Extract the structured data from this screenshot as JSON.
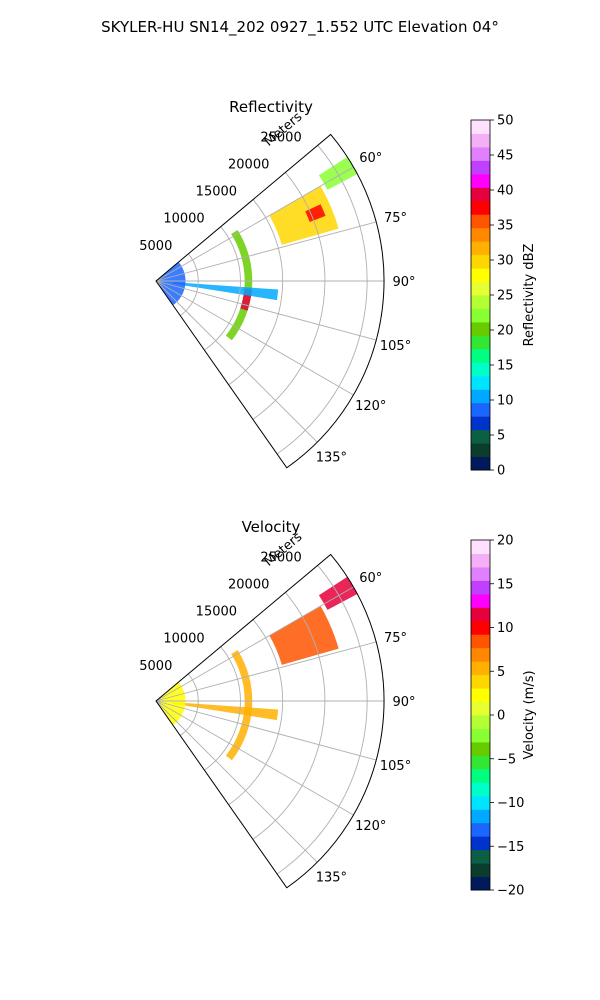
{
  "figure": {
    "suptitle": "SKYLER-HU  SN14_202  0927_1.552 UTC Elevation 04°"
  },
  "chart_data": [
    {
      "type": "heatmap",
      "subtype": "polar-sector radar PPI",
      "title": "Reflectivity",
      "range_label": "Meters",
      "range_ticks": [
        5000,
        10000,
        15000,
        20000,
        25000
      ],
      "range_max": 27000,
      "azimuth_range": [
        50,
        145
      ],
      "azimuth_ticks": [
        "60°",
        "75°",
        "90°",
        "105°",
        "120°",
        "135°"
      ],
      "grid": true,
      "colorbar": {
        "label": "Reflectivity dBZ",
        "min": 0,
        "max": 50,
        "ticks": [
          0,
          5,
          10,
          15,
          20,
          25,
          30,
          35,
          40,
          45,
          50
        ],
        "colors": [
          "#001a5c",
          "#0b3d2c",
          "#0c5f45",
          "#0033cc",
          "#1a66ff",
          "#00a8ff",
          "#00e5ff",
          "#00ffc8",
          "#00ff80",
          "#33e633",
          "#66cc00",
          "#88ff33",
          "#b3ff33",
          "#e6ff33",
          "#ffff00",
          "#ffd700",
          "#ffb000",
          "#ff8800",
          "#ff5500",
          "#ff0000",
          "#e6003c",
          "#ff00ff",
          "#c040ff",
          "#e080ff",
          "#f4b0f4",
          "#ffe0ff"
        ]
      },
      "echoes": [
        {
          "az_from": 60,
          "az_to": 74,
          "r_from": 15500,
          "r_to": 22500,
          "value": 30,
          "feature": "main storm band"
        },
        {
          "az_from": 65,
          "az_to": 69,
          "r_from": 19500,
          "r_to": 21500,
          "value": 38,
          "feature": "reflectivity core"
        },
        {
          "az_from": 57,
          "az_to": 62,
          "r_from": 23000,
          "r_to": 27000,
          "value": 22,
          "feature": "far cell"
        },
        {
          "az_from": 58,
          "az_to": 128,
          "r_from": 10500,
          "r_to": 11400,
          "value": 20,
          "feature": "ring clutter"
        },
        {
          "az_from": 95,
          "az_to": 108,
          "r_from": 10500,
          "r_to": 11400,
          "value": 40,
          "feature": "ring clutter strong"
        },
        {
          "az_from": 94,
          "az_to": 99,
          "r_from": 2000,
          "r_to": 14500,
          "value": 10,
          "feature": "radial line"
        },
        {
          "az_from": 50,
          "az_to": 145,
          "r_from": 300,
          "r_to": 3500,
          "value": 8,
          "feature": "near-range clutter"
        }
      ]
    },
    {
      "type": "heatmap",
      "subtype": "polar-sector radar PPI",
      "title": "Velocity",
      "range_label": "Meters",
      "range_ticks": [
        5000,
        10000,
        15000,
        20000,
        25000
      ],
      "range_max": 27000,
      "azimuth_range": [
        50,
        145
      ],
      "azimuth_ticks": [
        "60°",
        "75°",
        "90°",
        "105°",
        "120°",
        "135°"
      ],
      "grid": true,
      "colorbar": {
        "label": "Velocity (m/s)",
        "min": -20,
        "max": 20,
        "ticks": [
          -20,
          -15,
          -10,
          -5,
          0,
          5,
          10,
          15,
          20
        ],
        "colors": [
          "#001a5c",
          "#0b3d2c",
          "#0c5f45",
          "#0033cc",
          "#1a66ff",
          "#00a8ff",
          "#00e5ff",
          "#00ffc8",
          "#00ff80",
          "#33e633",
          "#66cc00",
          "#88ff33",
          "#b3ff33",
          "#e6ff33",
          "#ffff00",
          "#ffd700",
          "#ffb000",
          "#ff8800",
          "#ff5500",
          "#ff0000",
          "#e6003c",
          "#ff00ff",
          "#c040ff",
          "#e080ff",
          "#f4b0f4",
          "#ffe0ff"
        ]
      },
      "echoes": [
        {
          "az_from": 60,
          "az_to": 74,
          "r_from": 15500,
          "r_to": 22500,
          "value": 8,
          "feature": "main storm band"
        },
        {
          "az_from": 57,
          "az_to": 62,
          "r_from": 23000,
          "r_to": 27000,
          "value": 11,
          "feature": "far cell"
        },
        {
          "az_from": 58,
          "az_to": 128,
          "r_from": 10500,
          "r_to": 11400,
          "value": 5,
          "feature": "ring clutter"
        },
        {
          "az_from": 94,
          "az_to": 99,
          "r_from": 2000,
          "r_to": 14500,
          "value": 6,
          "feature": "radial line"
        },
        {
          "az_from": 50,
          "az_to": 145,
          "r_from": 300,
          "r_to": 3500,
          "value": 2,
          "feature": "near-range clutter"
        }
      ]
    }
  ]
}
